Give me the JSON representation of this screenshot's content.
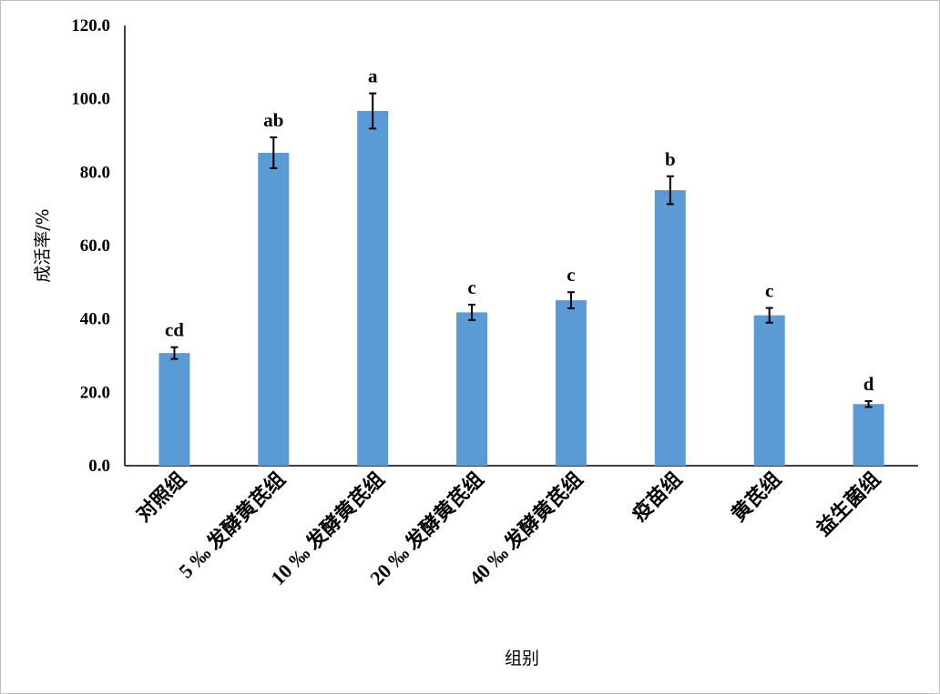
{
  "chart_data": {
    "type": "bar",
    "title": "",
    "xlabel": "组别",
    "ylabel": "成活率/%",
    "ylim": [
      0,
      120
    ],
    "yticks": [
      "0.0",
      "20.0",
      "40.0",
      "60.0",
      "80.0",
      "100.0",
      "120.0"
    ],
    "categories": [
      "对照组",
      "5 ‰ 发酵黄芪组",
      "10 ‰ 发酵黄芪组",
      "20 ‰ 发酵黄芪组",
      "40 ‰ 发酵黄芪组",
      "疫苗组",
      "黄芪组",
      "益生菌组"
    ],
    "values": [
      30.7,
      85.3,
      96.7,
      41.8,
      45.1,
      75.1,
      41.0,
      16.8
    ],
    "errors": [
      1.6,
      4.2,
      4.8,
      2.1,
      2.2,
      3.8,
      2.0,
      0.8
    ],
    "significance": [
      "cd",
      "ab",
      "a",
      "c",
      "c",
      "b",
      "c",
      "d"
    ],
    "bar_color": "#5b9bd5",
    "grid": false,
    "legend": "none"
  }
}
